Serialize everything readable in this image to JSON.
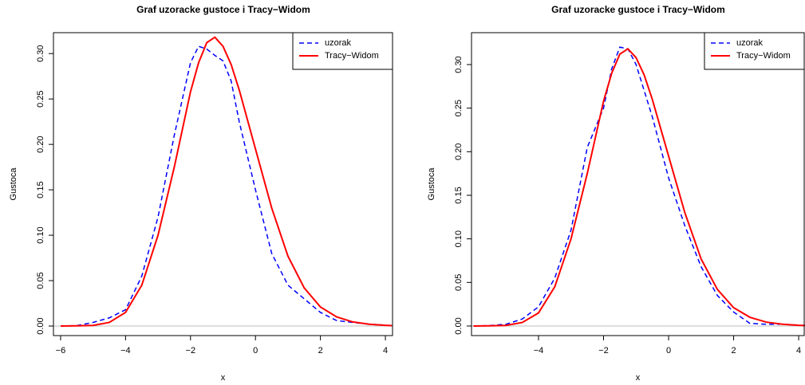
{
  "chart_data": [
    {
      "type": "line",
      "title": "Graf uzoracke gustoce i Tracy−Widom",
      "x_label": "x",
      "y_label": "Gustoca",
      "x": [
        -6,
        -5.5,
        -5,
        -4.5,
        -4,
        -3.5,
        -3,
        -2.5,
        -2,
        -1.75,
        -1.5,
        -1.25,
        -1,
        -0.75,
        -0.5,
        0,
        0.5,
        1,
        1.5,
        2,
        2.5,
        3,
        3.5,
        4,
        4.2
      ],
      "series": [
        {
          "name": "uzorak",
          "color": "#0000ff",
          "dash": true,
          "values": [
            0,
            0.0005,
            0.004,
            0.009,
            0.018,
            0.055,
            0.12,
            0.21,
            0.29,
            0.308,
            0.305,
            0.298,
            0.292,
            0.27,
            0.225,
            0.15,
            0.08,
            0.045,
            0.03,
            0.015,
            0.006,
            0.004,
            0.002,
            0.001,
            0.0005
          ]
        },
        {
          "name": "Tracy−Widom",
          "color": "#ff0000",
          "dash": false,
          "values": [
            0,
            0.0002,
            0.0007,
            0.004,
            0.015,
            0.045,
            0.1,
            0.175,
            0.258,
            0.29,
            0.312,
            0.318,
            0.308,
            0.288,
            0.26,
            0.195,
            0.13,
            0.077,
            0.042,
            0.021,
            0.01,
            0.0045,
            0.002,
            0.0008,
            0.0005
          ]
        }
      ],
      "xlim": [
        -6.22,
        4.22
      ],
      "ylim": [
        -0.0105,
        0.323
      ],
      "xticks": [
        {
          "value": -6,
          "label": "−6"
        },
        {
          "value": -4,
          "label": "−4"
        },
        {
          "value": -2,
          "label": "−2"
        },
        0,
        2,
        4
      ],
      "yticks": [
        {
          "value": 0,
          "label": "0.00"
        },
        {
          "value": 0.05,
          "label": "0.05"
        },
        {
          "value": 0.1,
          "label": "0.10"
        },
        {
          "value": 0.15,
          "label": "0.15"
        },
        {
          "value": 0.2,
          "label": "0.20"
        },
        {
          "value": 0.25,
          "label": "0.25"
        },
        {
          "value": 0.3,
          "label": "0.30"
        }
      ],
      "reference_line": 0,
      "legend": "topright"
    },
    {
      "type": "line",
      "title": "Graf uzoracke gustoce i Tracy−Widom",
      "x_label": "x",
      "y_label": "Gustoca",
      "x": [
        -6,
        -5.5,
        -5,
        -4.5,
        -4,
        -3.5,
        -3,
        -2.5,
        -2,
        -1.75,
        -1.5,
        -1.25,
        -1,
        -0.75,
        -0.5,
        0,
        0.5,
        1,
        1.5,
        2,
        2.5,
        3,
        3.5,
        4,
        4.2
      ],
      "series": [
        {
          "name": "uzorak",
          "color": "#0000ff",
          "dash": true,
          "values": [
            0,
            0.0005,
            0.002,
            0.008,
            0.022,
            0.055,
            0.11,
            0.205,
            0.25,
            0.295,
            0.32,
            0.318,
            0.3,
            0.27,
            0.24,
            0.17,
            0.115,
            0.068,
            0.035,
            0.016,
            0.003,
            0.002,
            0.002,
            0.001,
            0.0005
          ]
        },
        {
          "name": "Tracy−Widom",
          "color": "#ff0000",
          "dash": false,
          "values": [
            0,
            0.0002,
            0.0007,
            0.004,
            0.015,
            0.045,
            0.1,
            0.175,
            0.258,
            0.29,
            0.312,
            0.318,
            0.308,
            0.288,
            0.26,
            0.195,
            0.13,
            0.077,
            0.042,
            0.021,
            0.01,
            0.0045,
            0.002,
            0.0008,
            0.0005
          ]
        }
      ],
      "xlim": [
        -6.06,
        4.17
      ],
      "ylim": [
        -0.011,
        0.3366
      ],
      "xticks": [
        {
          "value": -4,
          "label": "−4"
        },
        {
          "value": -2,
          "label": "−2"
        },
        0,
        2,
        4
      ],
      "yticks": [
        {
          "value": 0,
          "label": "0.00"
        },
        {
          "value": 0.05,
          "label": "0.05"
        },
        {
          "value": 0.1,
          "label": "0.10"
        },
        {
          "value": 0.15,
          "label": "0.15"
        },
        {
          "value": 0.2,
          "label": "0.20"
        },
        {
          "value": 0.25,
          "label": "0.25"
        },
        {
          "value": 0.3,
          "label": "0.30"
        }
      ],
      "reference_line": 0,
      "legend": "topright"
    }
  ]
}
